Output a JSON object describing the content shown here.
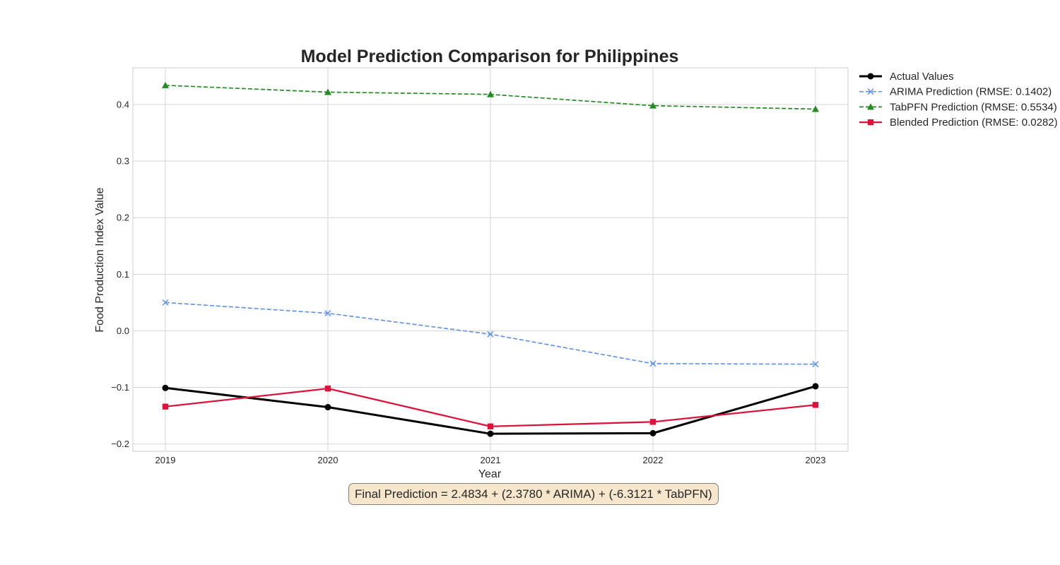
{
  "chart_data": {
    "type": "line",
    "title": "Model Prediction Comparison for Philippines",
    "xlabel": "Year",
    "ylabel": "Food Production Index Value",
    "x": [
      2019,
      2020,
      2021,
      2022,
      2023
    ],
    "x_tick_labels": [
      "2019",
      "2020",
      "2021",
      "2022",
      "2023"
    ],
    "y_ticks": [
      -0.2,
      -0.1,
      0.0,
      0.1,
      0.2,
      0.3,
      0.4
    ],
    "y_tick_labels": [
      "−0.2",
      "−0.1",
      "0.0",
      "0.1",
      "0.2",
      "0.3",
      "0.4"
    ],
    "xlim": [
      2018.8,
      2023.2
    ],
    "ylim": [
      -0.213,
      0.465
    ],
    "grid": true,
    "legend_position": "outside-right-top",
    "series": [
      {
        "name": "Actual Values",
        "values": [
          -0.101,
          -0.135,
          -0.182,
          -0.181,
          -0.098
        ],
        "color": "#000000",
        "marker": "circle",
        "line_style": "solid"
      },
      {
        "name": "ARIMA Prediction (RMSE: 0.1402)",
        "values": [
          0.05,
          0.031,
          -0.006,
          -0.058,
          -0.059
        ],
        "color": "#6495ed",
        "marker": "x",
        "line_style": "dashed"
      },
      {
        "name": "TabPFN Prediction (RMSE: 0.5534)",
        "values": [
          0.434,
          0.422,
          0.418,
          0.398,
          0.392
        ],
        "color": "#228b22",
        "marker": "triangle",
        "line_style": "dashed"
      },
      {
        "name": "Blended Prediction (RMSE: 0.0282)",
        "values": [
          -0.134,
          -0.102,
          -0.169,
          -0.161,
          -0.131
        ],
        "color": "#dc143c",
        "marker": "square",
        "line_style": "solid"
      }
    ]
  },
  "annotation": {
    "formula": "Final Prediction = 2.4834 + (2.3780 * ARIMA) + (-6.3121 * TabPFN)"
  }
}
